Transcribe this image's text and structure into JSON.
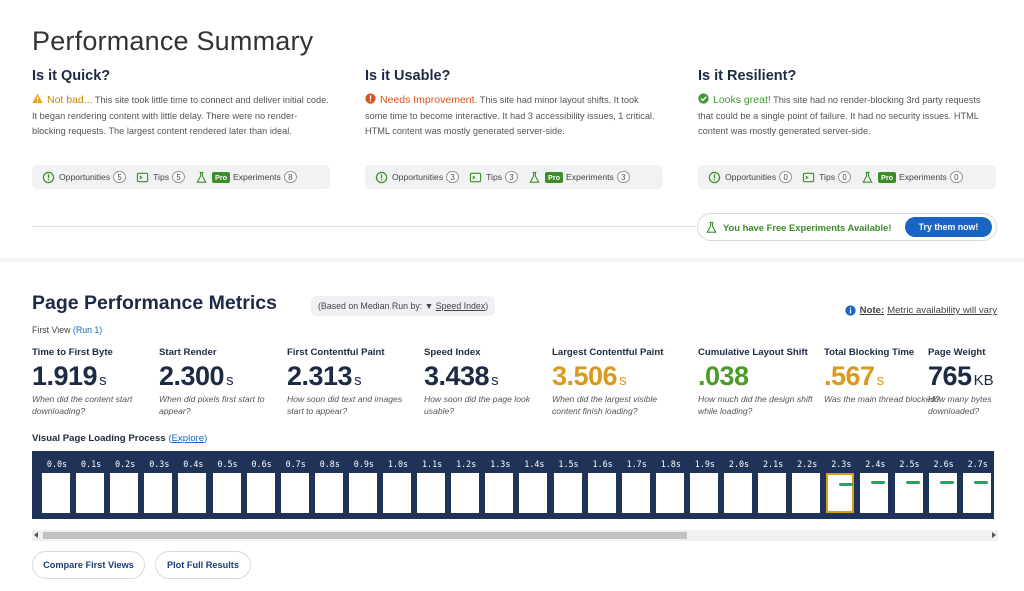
{
  "summary": {
    "title": "Performance Summary",
    "columns": [
      {
        "heading": "Is it Quick?",
        "status": "warning",
        "verdict": "Not bad...",
        "description": " This site took little time to connect and deliver initial code. It began rendering content with little delay. There were no render-blocking requests. The largest content rendered later than ideal.",
        "opportunities_label": "Opportunities",
        "opportunities_count": "5",
        "tips_label": "Tips",
        "tips_count": "5",
        "pro_label": "Pro",
        "experiments_label": "Experiments",
        "experiments_count": "8"
      },
      {
        "heading": "Is it Usable?",
        "status": "error",
        "verdict": "Needs Improvement.",
        "description": " This site had minor layout shifts. It took some time to become interactive. It had 3 accessibility issues, 1 critical. HTML content was mostly generated server-side.",
        "opportunities_label": "Opportunities",
        "opportunities_count": "3",
        "tips_label": "Tips",
        "tips_count": "3",
        "pro_label": "Pro",
        "experiments_label": "Experiments",
        "experiments_count": "3"
      },
      {
        "heading": "Is it Resilient?",
        "status": "ok",
        "verdict": "Looks great!",
        "description": " This site had no render-blocking 3rd party requests that could be a single point of failure. It had no security issues. HTML content was mostly generated server-side.",
        "opportunities_label": "Opportunities",
        "opportunities_count": "0",
        "tips_label": "Tips",
        "tips_count": "0",
        "pro_label": "Pro",
        "experiments_label": "Experiments",
        "experiments_count": "0"
      }
    ],
    "free_experiments": {
      "text": "You have Free Experiments Available!",
      "button": "Try them now!"
    }
  },
  "metrics_section": {
    "title": "Page Performance Metrics",
    "median_prefix": "(Based on Median Run by: ",
    "median_arrow": "▼",
    "median_metric": "Speed Index",
    "median_suffix": ")",
    "note_label": "Note:",
    "note_text": "Metric availability will vary",
    "first_view": "First View",
    "run_link": "(Run 1)",
    "metrics": [
      {
        "label": "Time to First Byte",
        "value": "1.919",
        "unit": "s",
        "desc": "When did the content start downloading?",
        "rating": "good"
      },
      {
        "label": "Start Render",
        "value": "2.300",
        "unit": "s",
        "desc": "When did pixels first start to appear?",
        "rating": "good"
      },
      {
        "label": "First Contentful Paint",
        "value": "2.313",
        "unit": "s",
        "desc": "How soon did text and images start to appear?",
        "rating": "good"
      },
      {
        "label": "Speed Index",
        "value": "3.438",
        "unit": "s",
        "desc": "How soon did the page look usable?",
        "rating": "good"
      },
      {
        "label": "Largest Contentful Paint",
        "value": "3.506",
        "unit": "s",
        "desc": "When did the largest visible content finish loading?",
        "rating": "needs-improvement"
      },
      {
        "label": "Cumulative Layout Shift",
        "value": ".038",
        "unit": "",
        "desc": "How much did the design shift while loading?",
        "rating": "pass"
      },
      {
        "label": "Total Blocking Time",
        "value": ".567",
        "unit": "s",
        "desc": "Was the main thread blocked?",
        "rating": "needs-improvement"
      },
      {
        "label": "Page Weight",
        "value": "765",
        "unit": "KB",
        "desc": "How many bytes downloaded?",
        "rating": "neutral"
      }
    ],
    "colors": {
      "good": "#1d2a44",
      "neutral": "#1d2a44",
      "needs-improvement": "#d99a1e",
      "pass": "#4c9a2a"
    }
  },
  "filmstrip": {
    "title": "Visual Page Loading Process",
    "explore_link": "Explore",
    "explore_open": " (",
    "explore_close": ")",
    "frames": [
      "0.0s",
      "0.1s",
      "0.2s",
      "0.3s",
      "0.4s",
      "0.5s",
      "0.6s",
      "0.7s",
      "0.8s",
      "0.9s",
      "1.0s",
      "1.1s",
      "1.2s",
      "1.3s",
      "1.4s",
      "1.5s",
      "1.6s",
      "1.7s",
      "1.8s",
      "1.9s",
      "2.0s",
      "2.1s",
      "2.2s",
      "2.3s",
      "2.4s",
      "2.5s",
      "2.6s",
      "2.7s"
    ],
    "first_rendered_index": 23,
    "selected_index": 23
  },
  "actions": {
    "compare": "Compare First Views",
    "plot": "Plot Full Results"
  }
}
